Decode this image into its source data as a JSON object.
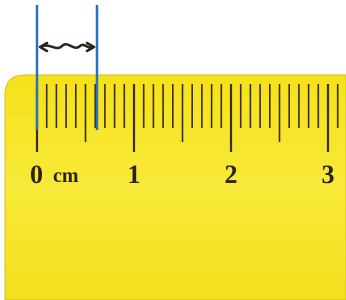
{
  "ruler": {
    "zero_label": "0",
    "unit": "cm",
    "labels": [
      "1",
      "2",
      "3"
    ]
  }
}
